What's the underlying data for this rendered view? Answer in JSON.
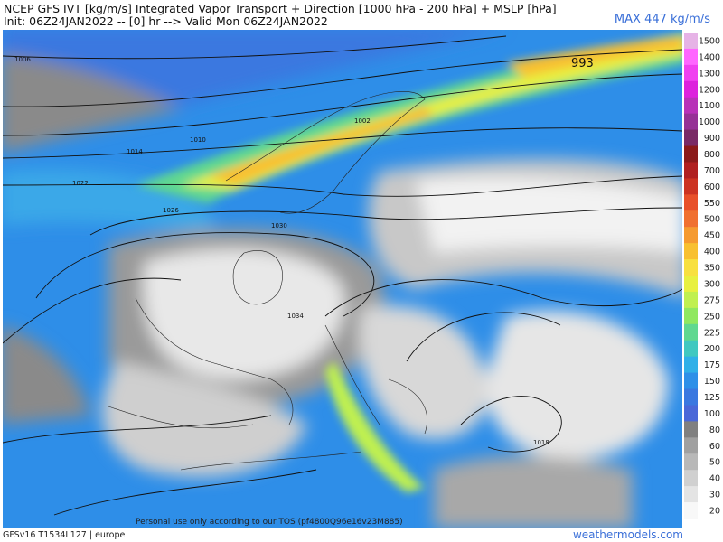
{
  "header": {
    "title": "NCEP GFS IVT [kg/m/s] Integrated Vapor Transport + Direction [1000 hPa - 200 hPa] + MSLP [hPa]",
    "subtitle": "Init: 06Z24JAN2022 -- [0] hr --> Valid Mon 06Z24JAN2022",
    "max_label": "MAX 447 kg/m/s"
  },
  "colorbar": {
    "levels": [
      {
        "label": "1500",
        "color": "#e6b3e6"
      },
      {
        "label": "1400",
        "color": "#ff66ff"
      },
      {
        "label": "1300",
        "color": "#f040f0"
      },
      {
        "label": "1200",
        "color": "#dd22dd"
      },
      {
        "label": "1100",
        "color": "#b832b8"
      },
      {
        "label": "1000",
        "color": "#963296"
      },
      {
        "label": "900",
        "color": "#7a2a66"
      },
      {
        "label": "800",
        "color": "#8b1a1a"
      },
      {
        "label": "700",
        "color": "#b02020"
      },
      {
        "label": "600",
        "color": "#cc3322"
      },
      {
        "label": "550",
        "color": "#e8502a"
      },
      {
        "label": "500",
        "color": "#f07030"
      },
      {
        "label": "450",
        "color": "#f59a30"
      },
      {
        "label": "400",
        "color": "#f8c030"
      },
      {
        "label": "350",
        "color": "#f8e040"
      },
      {
        "label": "300",
        "color": "#e8f040"
      },
      {
        "label": "275",
        "color": "#c0f050"
      },
      {
        "label": "250",
        "color": "#90e860"
      },
      {
        "label": "225",
        "color": "#60d890"
      },
      {
        "label": "200",
        "color": "#40c8c0"
      },
      {
        "label": "175",
        "color": "#30b0e8"
      },
      {
        "label": "150",
        "color": "#2e90e8"
      },
      {
        "label": "125",
        "color": "#3a78e0"
      },
      {
        "label": "100",
        "color": "#4a68d8"
      },
      {
        "label": "80",
        "color": "#808080"
      },
      {
        "label": "60",
        "color": "#a0a0a0"
      },
      {
        "label": "50",
        "color": "#b8b8b8"
      },
      {
        "label": "40",
        "color": "#d0d0d0"
      },
      {
        "label": "30",
        "color": "#e4e4e4"
      },
      {
        "label": "20",
        "color": "#f8f8f8"
      }
    ]
  },
  "isobar_labels": [
    "993",
    "1006",
    "1010",
    "1014",
    "1022",
    "1026",
    "1030",
    "1034",
    "1018",
    "1002"
  ],
  "footer": {
    "notice": "Personal use only according to our TOS (pf4800Q96e16v23M885)",
    "model": "GFSv16 T1534L127 | europe",
    "site": "weathermodels.com"
  }
}
